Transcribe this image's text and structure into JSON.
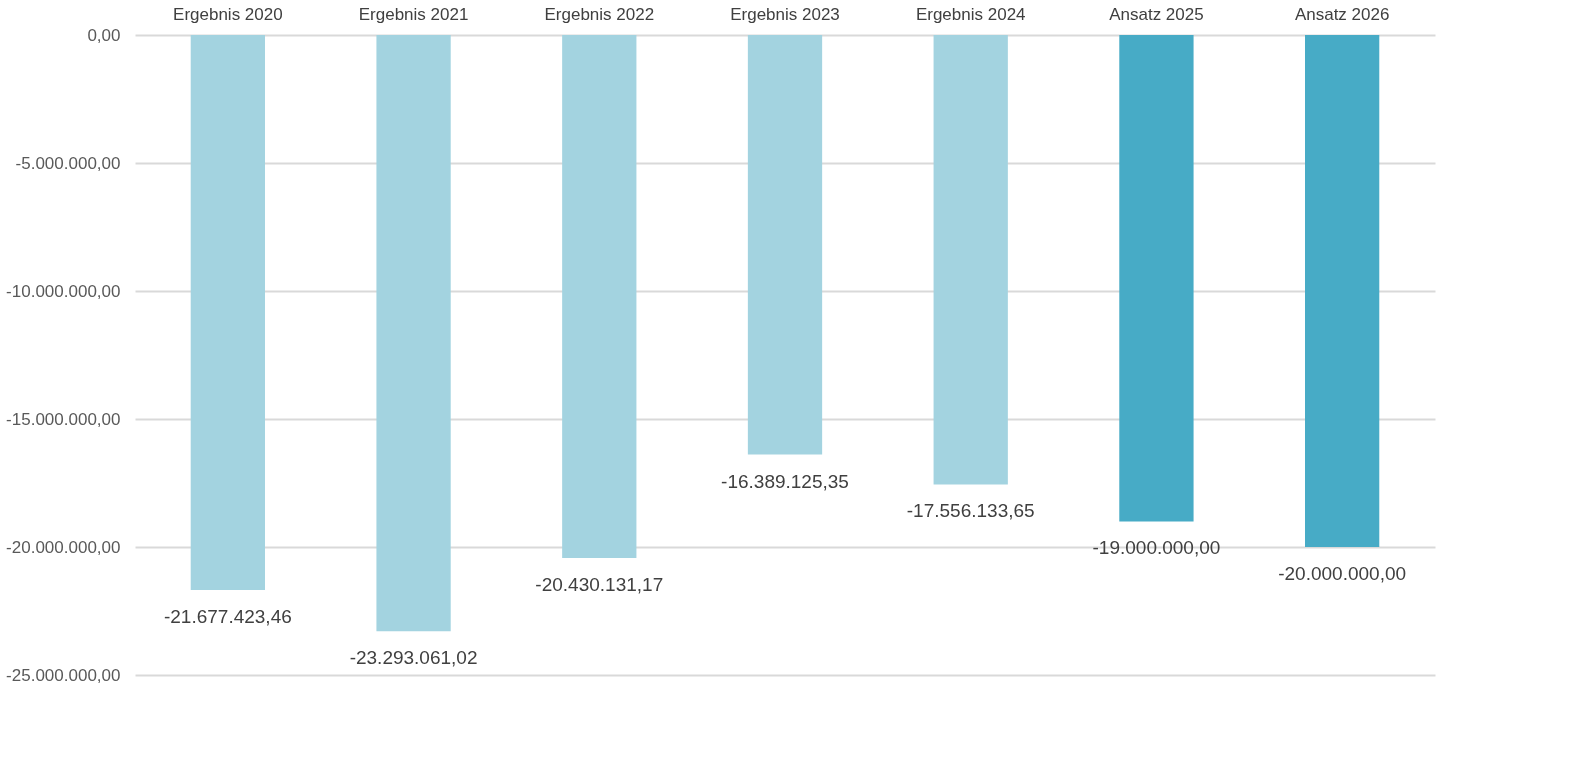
{
  "chart_data": {
    "type": "bar",
    "categories": [
      "Ergebnis 2020",
      "Ergebnis 2021",
      "Ergebnis 2022",
      "Ergebnis 2023",
      "Ergebnis 2024",
      "Ansatz 2025",
      "Ansatz 2026"
    ],
    "values": [
      -21677423.46,
      -23293061.02,
      -20430131.17,
      -16389125.35,
      -17556133.65,
      -19000000.0,
      -20000000.0
    ],
    "colors": [
      "#a3d3e0",
      "#a3d3e0",
      "#a3d3e0",
      "#a3d3e0",
      "#a3d3e0",
      "#47abc6",
      "#47abc6"
    ],
    "ylim": [
      -25000000,
      0
    ],
    "yticks": [
      {
        "value": 0,
        "label": "0,00"
      },
      {
        "value": -5000000,
        "label": "-5.000.000,00"
      },
      {
        "value": -10000000,
        "label": "-10.000.000,00"
      },
      {
        "value": -15000000,
        "label": "-15.000.000,00"
      },
      {
        "value": -20000000,
        "label": "-20.000.000,00"
      },
      {
        "value": -25000000,
        "label": "-25.000.000,00"
      }
    ],
    "value_labels": [
      "-21.677.423,46",
      "-23.293.061,02",
      "-20.430.131,17",
      "-16.389.125,35",
      "-17.556.133,65",
      "-19.000.000,00",
      "-20.000.000,00"
    ],
    "grid": true
  }
}
